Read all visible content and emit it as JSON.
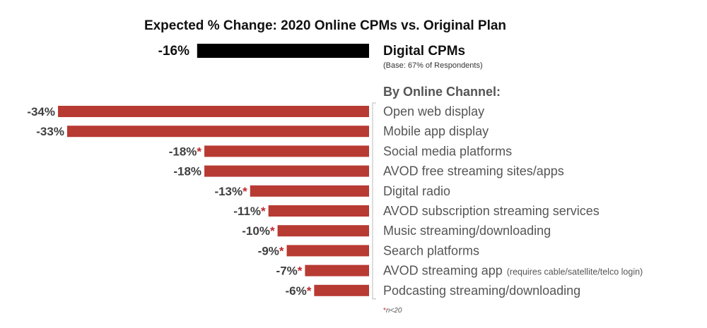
{
  "chart_data": {
    "type": "bar",
    "orientation": "horizontal",
    "title": "Expected % Change: 2020 Online CPMs vs. Original Plan",
    "summary": {
      "label": "Digital CPMs",
      "value": -16,
      "value_label": "-16%",
      "color": "#000000",
      "note": "(Base:  67% of Respondents)"
    },
    "section_label": "By Online Channel:",
    "categories": [
      "Open web display",
      "Mobile app display",
      "Social media platforms",
      "AVOD free streaming sites/apps",
      "Digital radio",
      "AVOD subscription streaming services",
      "Music streaming/downloading",
      "Search platforms",
      "AVOD streaming app",
      "Podcasting streaming/downloading"
    ],
    "category_notes": [
      "",
      "",
      "",
      "",
      "",
      "",
      "",
      "",
      "(requires cable/satellite/telco login)",
      ""
    ],
    "values": [
      -34,
      -33,
      -18,
      -18,
      -13,
      -11,
      -10,
      -9,
      -7,
      -6
    ],
    "value_labels": [
      "-34%",
      "-33%",
      "-18%",
      "-18%",
      "-13%",
      "-11%",
      "-10%",
      "-9%",
      "-7%",
      "-6%"
    ],
    "low_sample": [
      false,
      false,
      true,
      false,
      true,
      true,
      true,
      true,
      true,
      true
    ],
    "low_sample_marker": "*",
    "footnote": {
      "marker": "*",
      "text": "n<20"
    },
    "bar_color": "#b73a33",
    "star_color": "#c0272d",
    "xlim": [
      -35,
      0
    ],
    "grid": false,
    "legend": "none"
  }
}
